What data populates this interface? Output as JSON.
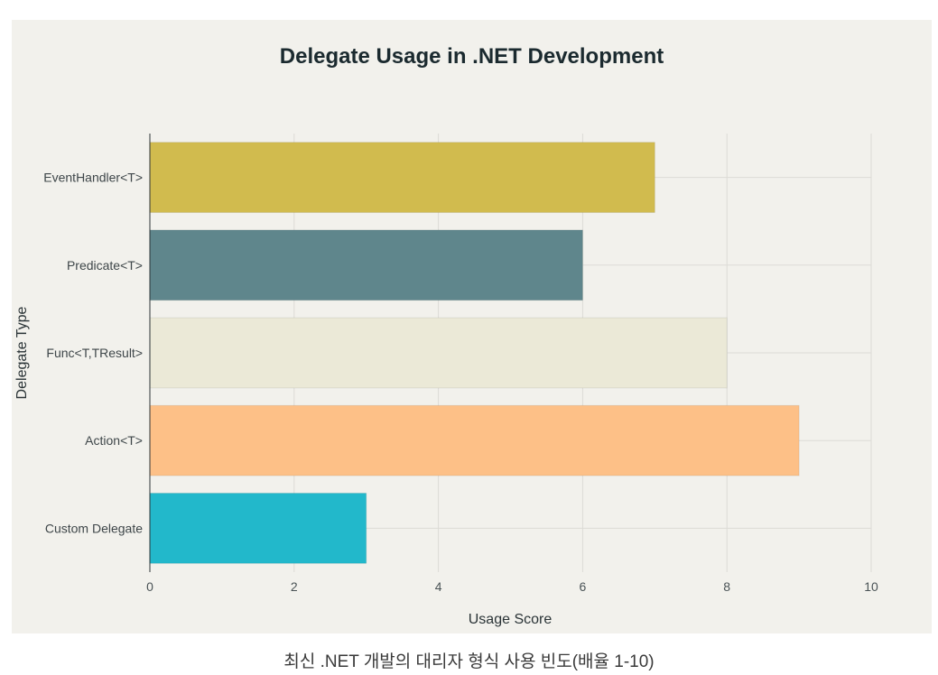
{
  "chart_data": {
    "type": "bar",
    "orientation": "horizontal",
    "title": "Delegate Usage in .NET Development",
    "xlabel": "Usage Score",
    "ylabel": "Delegate Type",
    "categories": [
      "EventHandler<T>",
      "Predicate<T>",
      "Func<T,TResult>",
      "Action<T>",
      "Custom Delegate"
    ],
    "values": [
      7,
      6,
      8,
      9,
      3
    ],
    "colors": [
      "#d1bb4e",
      "#5f868c",
      "#ebe9d7",
      "#fdc087",
      "#22b8cb"
    ],
    "xlim": [
      0,
      10
    ],
    "xticks": [
      0,
      2,
      4,
      6,
      8,
      10
    ],
    "grid": true,
    "legend": "none"
  },
  "caption": "최신 .NET 개발의 대리자 형식 사용 빈도(배율 1-10)"
}
